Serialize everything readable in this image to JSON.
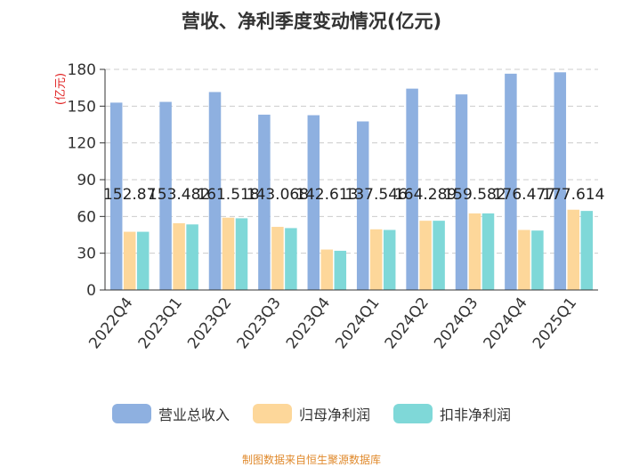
{
  "chart_data": {
    "type": "bar",
    "title": "营收、净利季度变动情况(亿元)",
    "ylabel": "(亿元)",
    "ylim": [
      0,
      180
    ],
    "yticks": [
      0,
      30,
      60,
      90,
      120,
      150,
      180
    ],
    "grid": true,
    "legend_position": "bottom",
    "categories": [
      "2022Q4",
      "2023Q1",
      "2023Q2",
      "2023Q3",
      "2023Q4",
      "2024Q1",
      "2024Q2",
      "2024Q3",
      "2024Q4",
      "2025Q1"
    ],
    "series": [
      {
        "name": "营业总收入",
        "color": "#8eb0e0",
        "values": [
          152.87,
          153.482,
          161.518,
          143.068,
          142.613,
          137.546,
          164.289,
          159.582,
          176.477,
          177.614
        ]
      },
      {
        "name": "归母净利润",
        "color": "#fdd79a",
        "values": [
          47.5,
          54.5,
          59.0,
          51.5,
          33.0,
          49.5,
          56.5,
          62.5,
          49.0,
          65.5
        ]
      },
      {
        "name": "扣非净利润",
        "color": "#7fd8d8",
        "values": [
          47.5,
          53.5,
          58.5,
          50.5,
          32.0,
          49.0,
          56.5,
          62.5,
          48.5,
          64.5
        ]
      }
    ],
    "data_labels": [
      "152.87",
      "153.482",
      "161.518",
      "143.068",
      "142.613",
      "137.546",
      "164.289",
      "159.582",
      "176.477",
      "177.614"
    ]
  },
  "source": "制图数据来自恒生聚源数据库"
}
